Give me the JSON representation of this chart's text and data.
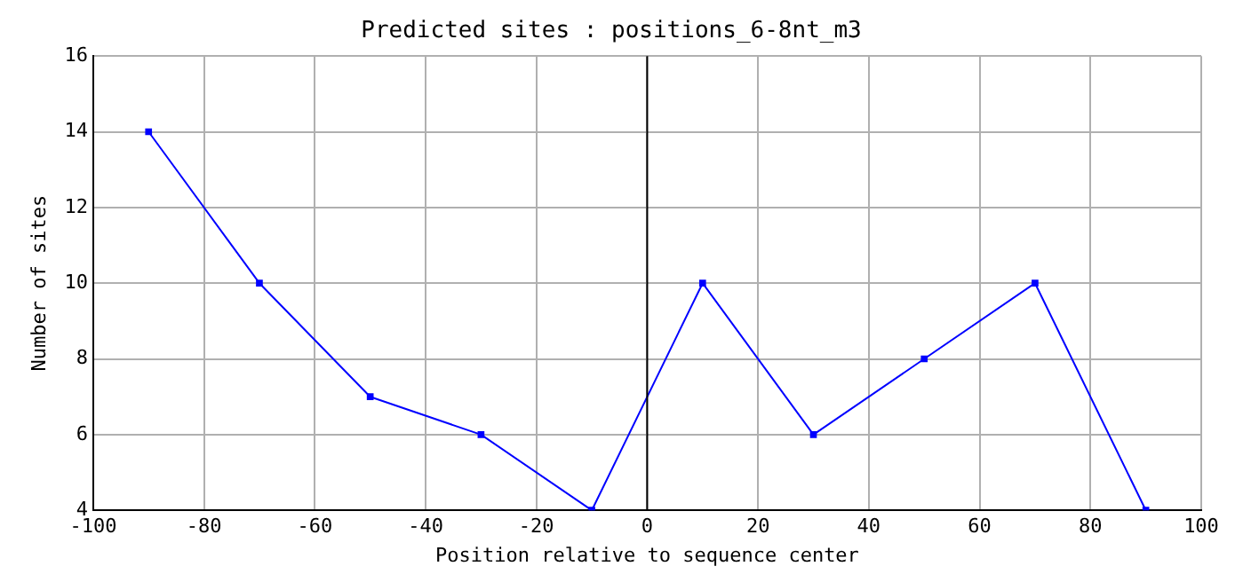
{
  "chart_data": {
    "type": "line",
    "title": "Predicted sites : positions_6-8nt_m3",
    "xlabel": "Position relative to sequence center",
    "ylabel": "Number of sites",
    "x": [
      -90,
      -70,
      -50,
      -30,
      -10,
      10,
      30,
      50,
      70,
      90
    ],
    "series": [
      {
        "color": "#0000ff",
        "values": [
          14,
          10,
          7,
          6,
          4,
          10,
          6,
          8,
          10,
          4
        ]
      }
    ],
    "xlim": [
      -100,
      100
    ],
    "xticks": [
      -100,
      -80,
      -60,
      -40,
      -20,
      0,
      20,
      40,
      60,
      80,
      100
    ],
    "ylim": [
      4,
      16
    ],
    "yticks": [
      4,
      6,
      8,
      10,
      12,
      14,
      16
    ],
    "ref_lines": [
      {
        "axis": "x",
        "value": 0,
        "color": "#000000"
      }
    ],
    "grid": true,
    "marker": "square",
    "line_style": "solid",
    "legend": false
  }
}
